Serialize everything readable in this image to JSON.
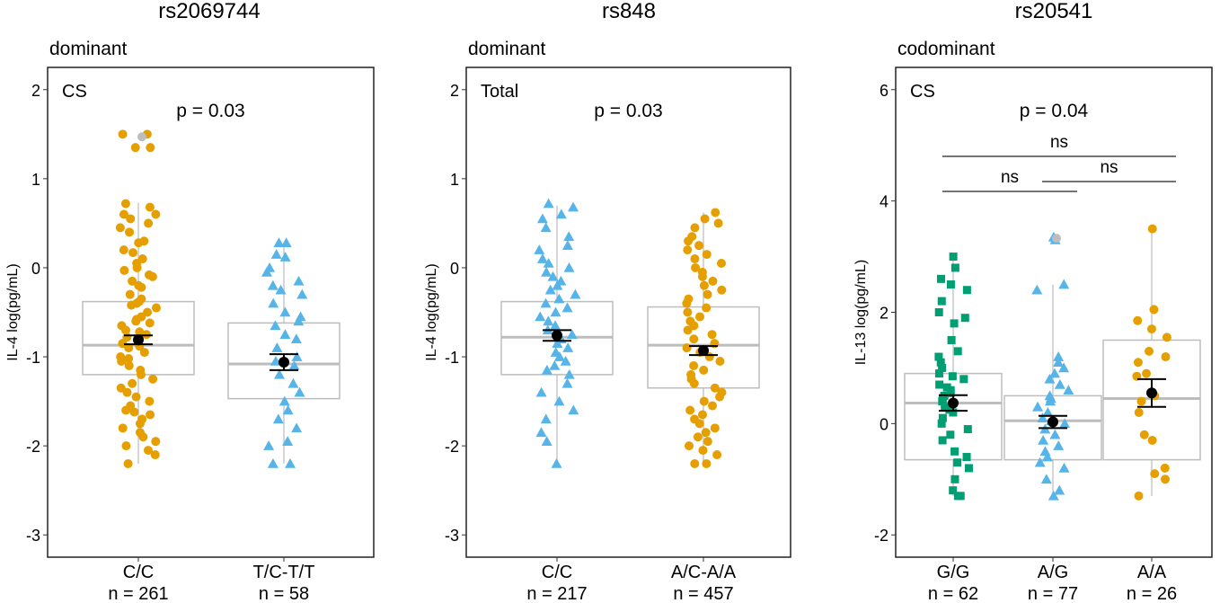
{
  "chart_data": [
    {
      "type": "box",
      "title": "rs2069744",
      "model": "dominant",
      "group": "CS",
      "pvalue": "p = 0.03",
      "ylabel": "IL-4 log(pg/mL)",
      "ylim": [
        -3.25,
        2.25
      ],
      "yticks": [
        -3,
        -2,
        -1,
        0,
        1,
        2
      ],
      "categories": [
        "C/C",
        "T/C-T/T"
      ],
      "counts": [
        "n = 261",
        "n = 58"
      ],
      "colors": [
        "#E69F00",
        "#56B4E9"
      ],
      "markers": [
        "circle",
        "triangle"
      ],
      "boxes": [
        {
          "q1": -1.2,
          "median": -0.87,
          "q3": -0.38,
          "whisker_low": -2.2,
          "whisker_high": 0.73,
          "mean": -0.81,
          "mean_low": -0.76,
          "mean_high": -0.86
        },
        {
          "q1": -1.47,
          "median": -1.08,
          "q3": -0.62,
          "whisker_low": -2.2,
          "whisker_high": 0.27,
          "mean": -1.06,
          "mean_low": -0.97,
          "mean_high": -1.15
        }
      ],
      "points": [
        [
          1.5,
          1.5,
          1.35,
          1.35,
          0.72,
          0.68,
          0.6,
          0.6,
          0.55,
          0.5,
          0.45,
          0.4,
          0.3,
          0.28,
          0.2,
          0.17,
          0.1,
          0.05,
          0.0,
          -0.03,
          -0.08,
          -0.1,
          -0.15,
          -0.2,
          -0.22,
          -0.3,
          -0.35,
          -0.38,
          -0.4,
          -0.42,
          -0.45,
          -0.5,
          -0.55,
          -0.58,
          -0.6,
          -0.62,
          -0.65,
          -0.7,
          -0.72,
          -0.75,
          -0.78,
          -0.8,
          -0.85,
          -0.88,
          -0.9,
          -0.95,
          -1.0,
          -1.02,
          -1.05,
          -1.1,
          -1.15,
          -1.2,
          -1.25,
          -1.3,
          -1.35,
          -1.4,
          -1.45,
          -1.5,
          -1.55,
          -1.6,
          -1.62,
          -1.65,
          -1.7,
          -1.75,
          -1.8,
          -1.85,
          -1.9,
          -1.95,
          -2.0,
          -2.05,
          -2.1,
          -2.2
        ],
        [
          0.28,
          0.28,
          0.15,
          0.12,
          0.0,
          -0.05,
          -0.15,
          -0.2,
          -0.25,
          -0.3,
          -0.4,
          -0.5,
          -0.55,
          -0.6,
          -0.65,
          -0.75,
          -0.8,
          -0.9,
          -1.0,
          -1.05,
          -1.1,
          -1.2,
          -1.3,
          -1.4,
          -1.5,
          -1.6,
          -1.7,
          -1.8,
          -1.95,
          -2.0,
          -2.2,
          -2.2
        ]
      ],
      "outliers": [
        [
          1.47
        ],
        []
      ]
    },
    {
      "type": "box",
      "title": "rs848",
      "model": "dominant",
      "group": "Total",
      "pvalue": "p = 0.03",
      "ylabel": "IL-4 log(pg/mL)",
      "ylim": [
        -3.25,
        2.25
      ],
      "yticks": [
        -3,
        -2,
        -1,
        0,
        1,
        2
      ],
      "categories": [
        "C/C",
        "A/C-A/A"
      ],
      "counts": [
        "n = 217",
        "n = 457"
      ],
      "colors": [
        "#56B4E9",
        "#E69F00"
      ],
      "markers": [
        "triangle",
        "circle"
      ],
      "boxes": [
        {
          "q1": -1.2,
          "median": -0.78,
          "q3": -0.38,
          "whisker_low": -2.2,
          "whisker_high": 0.7,
          "mean": -0.76,
          "mean_low": -0.7,
          "mean_high": -0.82
        },
        {
          "q1": -1.35,
          "median": -0.87,
          "q3": -0.44,
          "whisker_low": -2.2,
          "whisker_high": 0.62,
          "mean": -0.93,
          "mean_low": -0.88,
          "mean_high": -0.98
        }
      ],
      "points": [
        [
          0.72,
          0.68,
          0.6,
          0.55,
          0.45,
          0.35,
          0.25,
          0.2,
          0.1,
          0.05,
          0.0,
          -0.05,
          -0.1,
          -0.15,
          -0.2,
          -0.25,
          -0.3,
          -0.35,
          -0.4,
          -0.45,
          -0.5,
          -0.55,
          -0.6,
          -0.65,
          -0.7,
          -0.75,
          -0.8,
          -0.85,
          -0.9,
          -0.95,
          -1.0,
          -1.05,
          -1.1,
          -1.15,
          -1.2,
          -1.3,
          -1.4,
          -1.5,
          -1.6,
          -1.7,
          -1.85,
          -1.95,
          -2.2
        ],
        [
          0.62,
          0.55,
          0.5,
          0.45,
          0.35,
          0.3,
          0.25,
          0.2,
          0.15,
          0.1,
          0.05,
          0.0,
          -0.05,
          -0.1,
          -0.15,
          -0.2,
          -0.25,
          -0.3,
          -0.35,
          -0.4,
          -0.45,
          -0.5,
          -0.55,
          -0.6,
          -0.65,
          -0.7,
          -0.75,
          -0.8,
          -0.85,
          -0.9,
          -0.95,
          -1.0,
          -1.05,
          -1.1,
          -1.15,
          -1.2,
          -1.25,
          -1.3,
          -1.35,
          -1.4,
          -1.45,
          -1.5,
          -1.55,
          -1.6,
          -1.65,
          -1.7,
          -1.75,
          -1.8,
          -1.85,
          -1.9,
          -1.95,
          -2.0,
          -2.05,
          -2.1,
          -2.2,
          -2.2
        ]
      ],
      "outliers": [
        [],
        []
      ]
    },
    {
      "type": "box",
      "title": "rs20541",
      "model": "codominant",
      "group": "CS",
      "pvalue": "p = 0.04",
      "ylabel": "IL-13 log(pg/mL)",
      "ylim": [
        -2.4,
        6.4
      ],
      "yticks": [
        -2,
        0,
        2,
        4,
        6
      ],
      "categories": [
        "G/G",
        "A/G",
        "A/A"
      ],
      "counts": [
        "n = 62",
        "n = 77",
        "n = 26"
      ],
      "colors": [
        "#009E73",
        "#56B4E9",
        "#E69F00"
      ],
      "markers": [
        "square",
        "triangle",
        "circle"
      ],
      "boxes": [
        {
          "q1": -0.65,
          "median": 0.37,
          "q3": 0.9,
          "whisker_low": -1.3,
          "whisker_high": 3.0,
          "mean": 0.37,
          "mean_low": 0.23,
          "mean_high": 0.51
        },
        {
          "q1": -0.65,
          "median": 0.05,
          "q3": 0.5,
          "whisker_low": -1.3,
          "whisker_high": 2.5,
          "mean": 0.03,
          "mean_low": -0.08,
          "mean_high": 0.14
        },
        {
          "q1": -0.65,
          "median": 0.45,
          "q3": 1.5,
          "whisker_low": -1.3,
          "whisker_high": 3.5,
          "mean": 0.55,
          "mean_low": 0.3,
          "mean_high": 0.8
        }
      ],
      "points": [
        [
          3.0,
          2.8,
          2.6,
          2.5,
          2.4,
          2.2,
          2.0,
          1.9,
          1.8,
          1.5,
          1.3,
          1.2,
          1.1,
          1.0,
          0.9,
          0.85,
          0.8,
          0.7,
          0.65,
          0.6,
          0.55,
          0.5,
          0.45,
          0.4,
          0.3,
          0.25,
          0.2,
          0.1,
          0.0,
          -0.1,
          -0.2,
          -0.3,
          -0.5,
          -0.6,
          -0.7,
          -0.8,
          -1.0,
          -1.2,
          -1.3,
          -1.3
        ],
        [
          3.35,
          3.3,
          2.5,
          2.4,
          1.2,
          1.1,
          1.0,
          0.9,
          0.8,
          0.7,
          0.6,
          0.5,
          0.45,
          0.4,
          0.3,
          0.2,
          0.1,
          0.05,
          0.0,
          -0.1,
          -0.2,
          -0.3,
          -0.4,
          -0.5,
          -0.6,
          -0.7,
          -0.8,
          -1.0,
          -1.2,
          -1.3
        ],
        [
          3.5,
          2.05,
          1.85,
          1.7,
          1.55,
          1.3,
          1.2,
          1.1,
          0.9,
          0.85,
          0.5,
          0.4,
          0.2,
          -0.2,
          -0.3,
          -0.8,
          -0.9,
          -1.0,
          -1.3
        ]
      ],
      "outliers": [
        [],
        [
          3.33
        ],
        []
      ],
      "comparisons": [
        {
          "from": 0,
          "to": 2,
          "label": "ns",
          "level": 2
        },
        {
          "from": 0,
          "to": 1,
          "label": "ns",
          "level": 1
        },
        {
          "from": 1,
          "to": 2,
          "label": "ns",
          "level": 0
        }
      ]
    }
  ]
}
